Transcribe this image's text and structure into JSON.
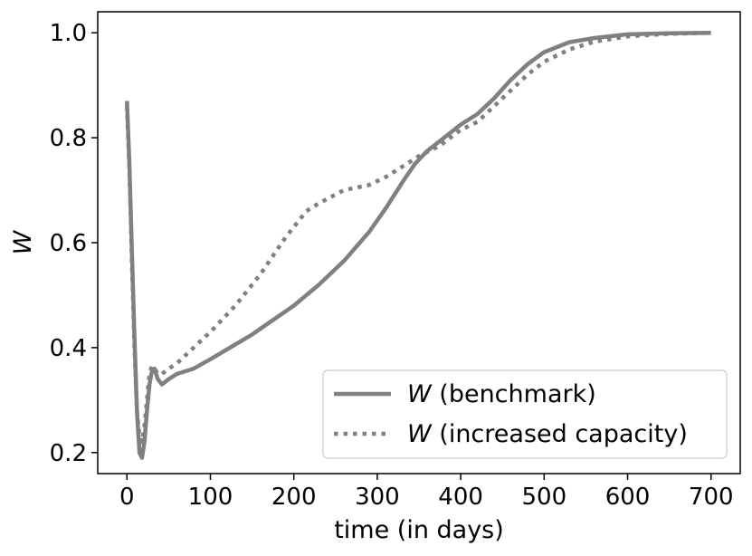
{
  "chart_data": {
    "type": "line",
    "title": "",
    "xlabel": "time (in days)",
    "ylabel": "W",
    "xlim": [
      -35,
      735
    ],
    "ylim": [
      0.16,
      1.04
    ],
    "xticks": [
      0,
      100,
      200,
      300,
      400,
      500,
      600,
      700
    ],
    "xtick_labels": [
      "0",
      "100",
      "200",
      "300",
      "400",
      "500",
      "600",
      "700"
    ],
    "yticks": [
      0.2,
      0.4,
      0.6,
      0.8,
      1.0
    ],
    "ytick_labels": [
      "0.2",
      "0.4",
      "0.6",
      "0.8",
      "1.0"
    ],
    "grid": false,
    "legend_position": "bottom-right",
    "series": [
      {
        "name": "W (benchmark)",
        "legend_italic": "W",
        "legend_rest": " (benchmark)",
        "style": "solid",
        "color": "#808080",
        "x": [
          0,
          3,
          6,
          9,
          12,
          15,
          18,
          21,
          24,
          27,
          30,
          33,
          37,
          42,
          50,
          60,
          80,
          100,
          150,
          200,
          230,
          260,
          290,
          310,
          330,
          345,
          360,
          380,
          400,
          420,
          440,
          460,
          480,
          500,
          530,
          560,
          600,
          650,
          700
        ],
        "values": [
          0.87,
          0.75,
          0.58,
          0.42,
          0.28,
          0.2,
          0.19,
          0.22,
          0.28,
          0.33,
          0.355,
          0.36,
          0.34,
          0.33,
          0.34,
          0.35,
          0.36,
          0.378,
          0.425,
          0.48,
          0.52,
          0.565,
          0.62,
          0.665,
          0.715,
          0.75,
          0.775,
          0.8,
          0.825,
          0.845,
          0.875,
          0.91,
          0.94,
          0.963,
          0.982,
          0.99,
          0.997,
          0.999,
          1.0
        ]
      },
      {
        "name": "W (increased capacity)",
        "legend_italic": "W",
        "legend_rest": " (increased capacity)",
        "style": "dotted",
        "color": "#808080",
        "x": [
          0,
          3,
          6,
          9,
          12,
          15,
          18,
          21,
          24,
          27,
          30,
          33,
          37,
          42,
          50,
          60,
          80,
          100,
          130,
          160,
          190,
          215,
          230,
          260,
          290,
          310,
          330,
          350,
          375,
          400,
          420,
          440,
          460,
          480,
          500,
          530,
          560,
          600,
          650,
          700
        ],
        "values": [
          0.86,
          0.74,
          0.56,
          0.4,
          0.28,
          0.23,
          0.22,
          0.25,
          0.3,
          0.35,
          0.365,
          0.36,
          0.35,
          0.35,
          0.36,
          0.37,
          0.4,
          0.43,
          0.48,
          0.54,
          0.61,
          0.66,
          0.675,
          0.7,
          0.71,
          0.725,
          0.745,
          0.765,
          0.785,
          0.815,
          0.83,
          0.86,
          0.89,
          0.92,
          0.945,
          0.968,
          0.983,
          0.993,
          0.998,
          1.0
        ]
      }
    ]
  }
}
